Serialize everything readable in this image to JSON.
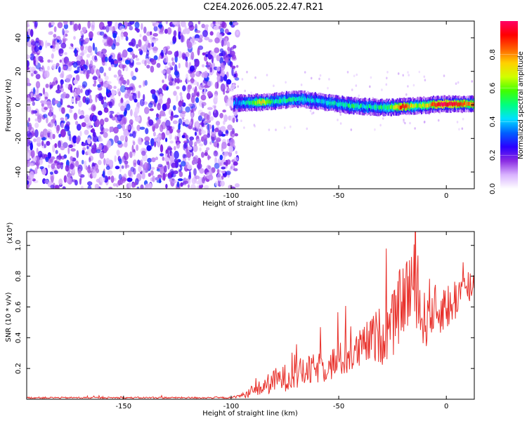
{
  "title": "C2E4.2026.005.22.47.R21",
  "chart_data": [
    {
      "type": "heatmap",
      "xlabel": "Height of straight line (km)",
      "ylabel": "Frequency (Hz)",
      "xlim": [
        -195,
        13
      ],
      "ylim": [
        -50,
        50
      ],
      "xticks": [
        -150,
        -100,
        -50,
        0
      ],
      "yticks": [
        -40,
        -20,
        0,
        20,
        40
      ],
      "noise_region_x": [
        -195,
        -97
      ],
      "signal_track": {
        "x_range": [
          -99,
          13
        ],
        "frequency_center": 0,
        "frequency_halfwidth": 3,
        "points": [
          {
            "x": -96,
            "y": 1.0,
            "amp": 0.35
          },
          {
            "x": -90,
            "y": 1.5,
            "amp": 0.55
          },
          {
            "x": -86,
            "y": 1.5,
            "amp": 0.75
          },
          {
            "x": -80,
            "y": 2.0,
            "amp": 0.45
          },
          {
            "x": -74,
            "y": 3.0,
            "amp": 0.5
          },
          {
            "x": -68,
            "y": 3.5,
            "amp": 0.45
          },
          {
            "x": -62,
            "y": 2.5,
            "amp": 0.4
          },
          {
            "x": -56,
            "y": 1.5,
            "amp": 0.45
          },
          {
            "x": -50,
            "y": 0.5,
            "amp": 0.45
          },
          {
            "x": -44,
            "y": -0.5,
            "amp": 0.5
          },
          {
            "x": -38,
            "y": -1.0,
            "amp": 0.45
          },
          {
            "x": -32,
            "y": -1.5,
            "amp": 0.5
          },
          {
            "x": -26,
            "y": -1.5,
            "amp": 0.55
          },
          {
            "x": -20,
            "y": -1.0,
            "amp": 0.95
          },
          {
            "x": -14,
            "y": -0.5,
            "amp": 0.6
          },
          {
            "x": -8,
            "y": 0.0,
            "amp": 0.75
          },
          {
            "x": -2,
            "y": 0.5,
            "amp": 1.0
          },
          {
            "x": 4,
            "y": 0.5,
            "amp": 0.95
          },
          {
            "x": 10,
            "y": 0.5,
            "amp": 0.8
          }
        ]
      },
      "colorbar": {
        "label": "Normalized spectral amplitude",
        "range": [
          0,
          1
        ],
        "ticks": [
          "0.0",
          "0.2",
          "0.4",
          "0.6",
          "0.8"
        ],
        "colors": [
          "#ffffff",
          "#d9b3ff",
          "#8a2be2",
          "#2a00ff",
          "#0060ff",
          "#00e0ff",
          "#00ff80",
          "#40ff00",
          "#d0ff00",
          "#ffd000",
          "#ff6000",
          "#ff0000",
          "#ff0066"
        ]
      }
    },
    {
      "type": "line",
      "xlabel": "Height of straight line (km)",
      "ylabel": "SNR (10 * v/v)",
      "scale_label": "(x10⁴)",
      "xlim": [
        -195,
        13
      ],
      "ylim": [
        0,
        1.09
      ],
      "xticks": [
        -150,
        -100,
        -50,
        0
      ],
      "yticks": [
        "0.2",
        "0.4",
        "0.6",
        "0.8",
        "1.0"
      ],
      "color": "#e8302a",
      "series": [
        {
          "x": [
            -195,
            -180,
            -165,
            -150,
            -135,
            -120,
            -110,
            -100,
            -97,
            -93,
            -90,
            -85,
            -80,
            -75,
            -70,
            -65,
            -60,
            -55,
            -50,
            -45,
            -42,
            -38,
            -34,
            -30,
            -27,
            -24,
            -22,
            -20,
            -18,
            -16,
            -14,
            -12,
            -10,
            -8,
            -6,
            -4,
            -2,
            0,
            2,
            4,
            6,
            8,
            10,
            12
          ],
          "y": [
            0.01,
            0.01,
            0.01,
            0.01,
            0.01,
            0.01,
            0.01,
            0.01,
            0.02,
            0.03,
            0.05,
            0.08,
            0.12,
            0.14,
            0.16,
            0.18,
            0.2,
            0.22,
            0.25,
            0.28,
            0.3,
            0.35,
            0.4,
            0.42,
            0.45,
            0.5,
            0.6,
            0.65,
            0.7,
            0.75,
            0.72,
            0.55,
            0.5,
            0.6,
            0.58,
            0.55,
            0.6,
            0.62,
            0.58,
            0.65,
            0.7,
            0.68,
            0.72,
            0.75
          ],
          "spread": [
            0.005,
            0.005,
            0.005,
            0.005,
            0.005,
            0.005,
            0.005,
            0.005,
            0.01,
            0.02,
            0.04,
            0.06,
            0.08,
            0.09,
            0.1,
            0.1,
            0.1,
            0.11,
            0.12,
            0.12,
            0.13,
            0.14,
            0.16,
            0.2,
            0.2,
            0.22,
            0.24,
            0.22,
            0.3,
            0.32,
            0.25,
            0.22,
            0.2,
            0.2,
            0.18,
            0.18,
            0.16,
            0.16,
            0.16,
            0.15,
            0.15,
            0.14,
            0.14,
            0.12
          ]
        }
      ]
    }
  ]
}
